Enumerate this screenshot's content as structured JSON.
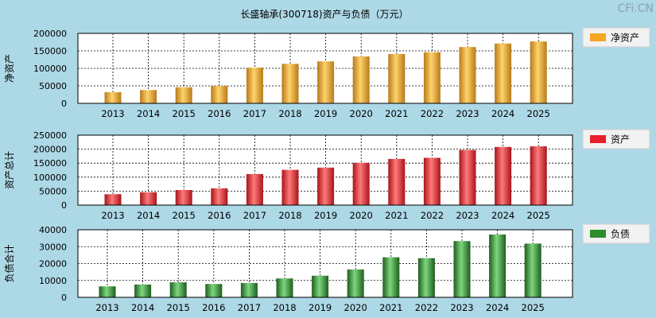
{
  "title": "长盛轴承(300718)资产与负债（万元）",
  "watermark": "CFi.CN",
  "colors": {
    "background": "#add8e6",
    "plot_background": "#ffffff",
    "net_assets": "#f5a623",
    "assets": "#e8202a",
    "liabilities": "#2e8b2e"
  },
  "chart_data": [
    {
      "type": "bar",
      "ylabel": "净资产",
      "legend": "净资产",
      "legend_position": "right",
      "grid": true,
      "ylim": [
        0,
        200000
      ],
      "yticks": [
        "0",
        "50000",
        "100000",
        "150000",
        "200000"
      ],
      "categories": [
        "2013",
        "2014",
        "2015",
        "2016",
        "2017",
        "2018",
        "2019",
        "2020",
        "2021",
        "2022",
        "2023",
        "2024",
        "2025"
      ],
      "values": [
        32000,
        38000,
        46000,
        50000,
        102000,
        113000,
        120000,
        134000,
        141000,
        146000,
        161000,
        171000,
        177000
      ]
    },
    {
      "type": "bar",
      "ylabel": "资产总计",
      "legend": "资产",
      "legend_position": "right",
      "grid": true,
      "ylim": [
        0,
        250000
      ],
      "yticks": [
        "0",
        "50000",
        "100000",
        "150000",
        "200000",
        "250000"
      ],
      "categories": [
        "2013",
        "2014",
        "2015",
        "2016",
        "2017",
        "2018",
        "2019",
        "2020",
        "2021",
        "2022",
        "2023",
        "2024",
        "2025"
      ],
      "values": [
        39000,
        46000,
        54000,
        60000,
        111000,
        126000,
        134000,
        151000,
        165000,
        169000,
        197000,
        208000,
        210000
      ]
    },
    {
      "type": "bar",
      "ylabel": "负债合计",
      "legend": "负债",
      "legend_position": "right",
      "grid": true,
      "ylim": [
        0,
        40000
      ],
      "yticks": [
        "0",
        "10000",
        "20000",
        "30000",
        "40000"
      ],
      "categories": [
        "2013",
        "2014",
        "2015",
        "2016",
        "2017",
        "2018",
        "2019",
        "2020",
        "2021",
        "2022",
        "2023",
        "2024",
        "2025"
      ],
      "values": [
        6500,
        7600,
        8900,
        7900,
        8500,
        11200,
        12800,
        16500,
        23700,
        23200,
        33300,
        37200,
        31800
      ]
    }
  ]
}
